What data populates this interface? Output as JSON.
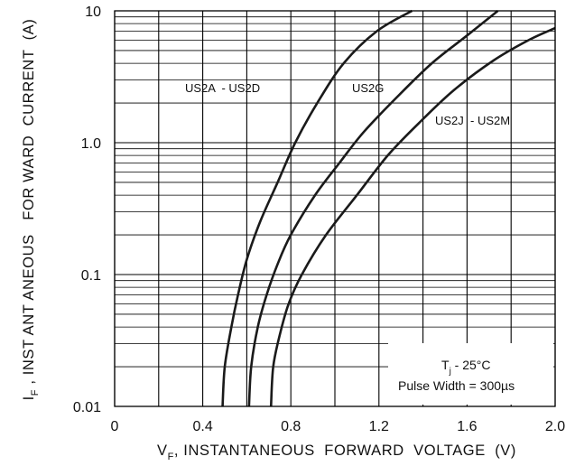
{
  "chart_data": {
    "type": "line",
    "title": "",
    "xlabel": "V_F, INSTANTANEOUS FORWARD VOLTAGE (V)",
    "xlabel_parts": {
      "main": "V",
      "sub": "F",
      "rest": ", INSTANTANEOUS  FORWARD  VOLTAGE  (V)"
    },
    "ylabel": "I_F, INST ANT ANEOUS FOR WARD CURRENT (A)",
    "ylabel_parts": {
      "main": "I",
      "sub": "F",
      "rest": " , INST ANT ANEOUS   FOR WARD  CURRENT  (A)"
    },
    "xlim": [
      0,
      2.0
    ],
    "ylim": [
      0.01,
      10
    ],
    "yscale": "log",
    "grid": true,
    "x_ticks": [
      {
        "value": 0,
        "label": "0"
      },
      {
        "value": 0.4,
        "label": "0.4"
      },
      {
        "value": 0.8,
        "label": "0.8"
      },
      {
        "value": 1.2,
        "label": "1.2"
      },
      {
        "value": 1.6,
        "label": "1.6"
      },
      {
        "value": 2.0,
        "label": "2.0"
      }
    ],
    "y_ticks": [
      {
        "value": 0.01,
        "label": "0.01"
      },
      {
        "value": 0.1,
        "label": "0.1"
      },
      {
        "value": 1,
        "label": "1.0"
      },
      {
        "value": 10,
        "label": "10"
      }
    ],
    "series": [
      {
        "name": "US2A  - US2D",
        "points": [
          [
            0.49,
            0.01
          ],
          [
            0.5,
            0.02
          ],
          [
            0.53,
            0.04
          ],
          [
            0.56,
            0.07
          ],
          [
            0.6,
            0.13
          ],
          [
            0.66,
            0.25
          ],
          [
            0.74,
            0.5
          ],
          [
            0.82,
            1.0
          ],
          [
            0.92,
            2.0
          ],
          [
            1.04,
            4.0
          ],
          [
            1.19,
            7.0
          ],
          [
            1.35,
            10.0
          ]
        ]
      },
      {
        "name": "US2G",
        "points": [
          [
            0.61,
            0.01
          ],
          [
            0.62,
            0.02
          ],
          [
            0.65,
            0.04
          ],
          [
            0.69,
            0.07
          ],
          [
            0.74,
            0.12
          ],
          [
            0.8,
            0.2
          ],
          [
            0.91,
            0.4
          ],
          [
            1.02,
            0.7
          ],
          [
            1.13,
            1.2
          ],
          [
            1.28,
            2.2
          ],
          [
            1.44,
            4.0
          ],
          [
            1.6,
            6.5
          ],
          [
            1.74,
            10.0
          ]
        ]
      },
      {
        "name": "US2J  - US2M",
        "points": [
          [
            0.71,
            0.01
          ],
          [
            0.72,
            0.02
          ],
          [
            0.75,
            0.035
          ],
          [
            0.79,
            0.06
          ],
          [
            0.85,
            0.1
          ],
          [
            0.96,
            0.2
          ],
          [
            1.1,
            0.4
          ],
          [
            1.24,
            0.8
          ],
          [
            1.38,
            1.4
          ],
          [
            1.54,
            2.5
          ],
          [
            1.72,
            4.2
          ],
          [
            1.88,
            6.0
          ],
          [
            2.0,
            7.4
          ]
        ]
      }
    ],
    "annotation": {
      "line1_main": "T",
      "line1_sub": "j",
      "line1_rest": " - 25°C",
      "line2": "Pulse Width = 300µs"
    }
  }
}
